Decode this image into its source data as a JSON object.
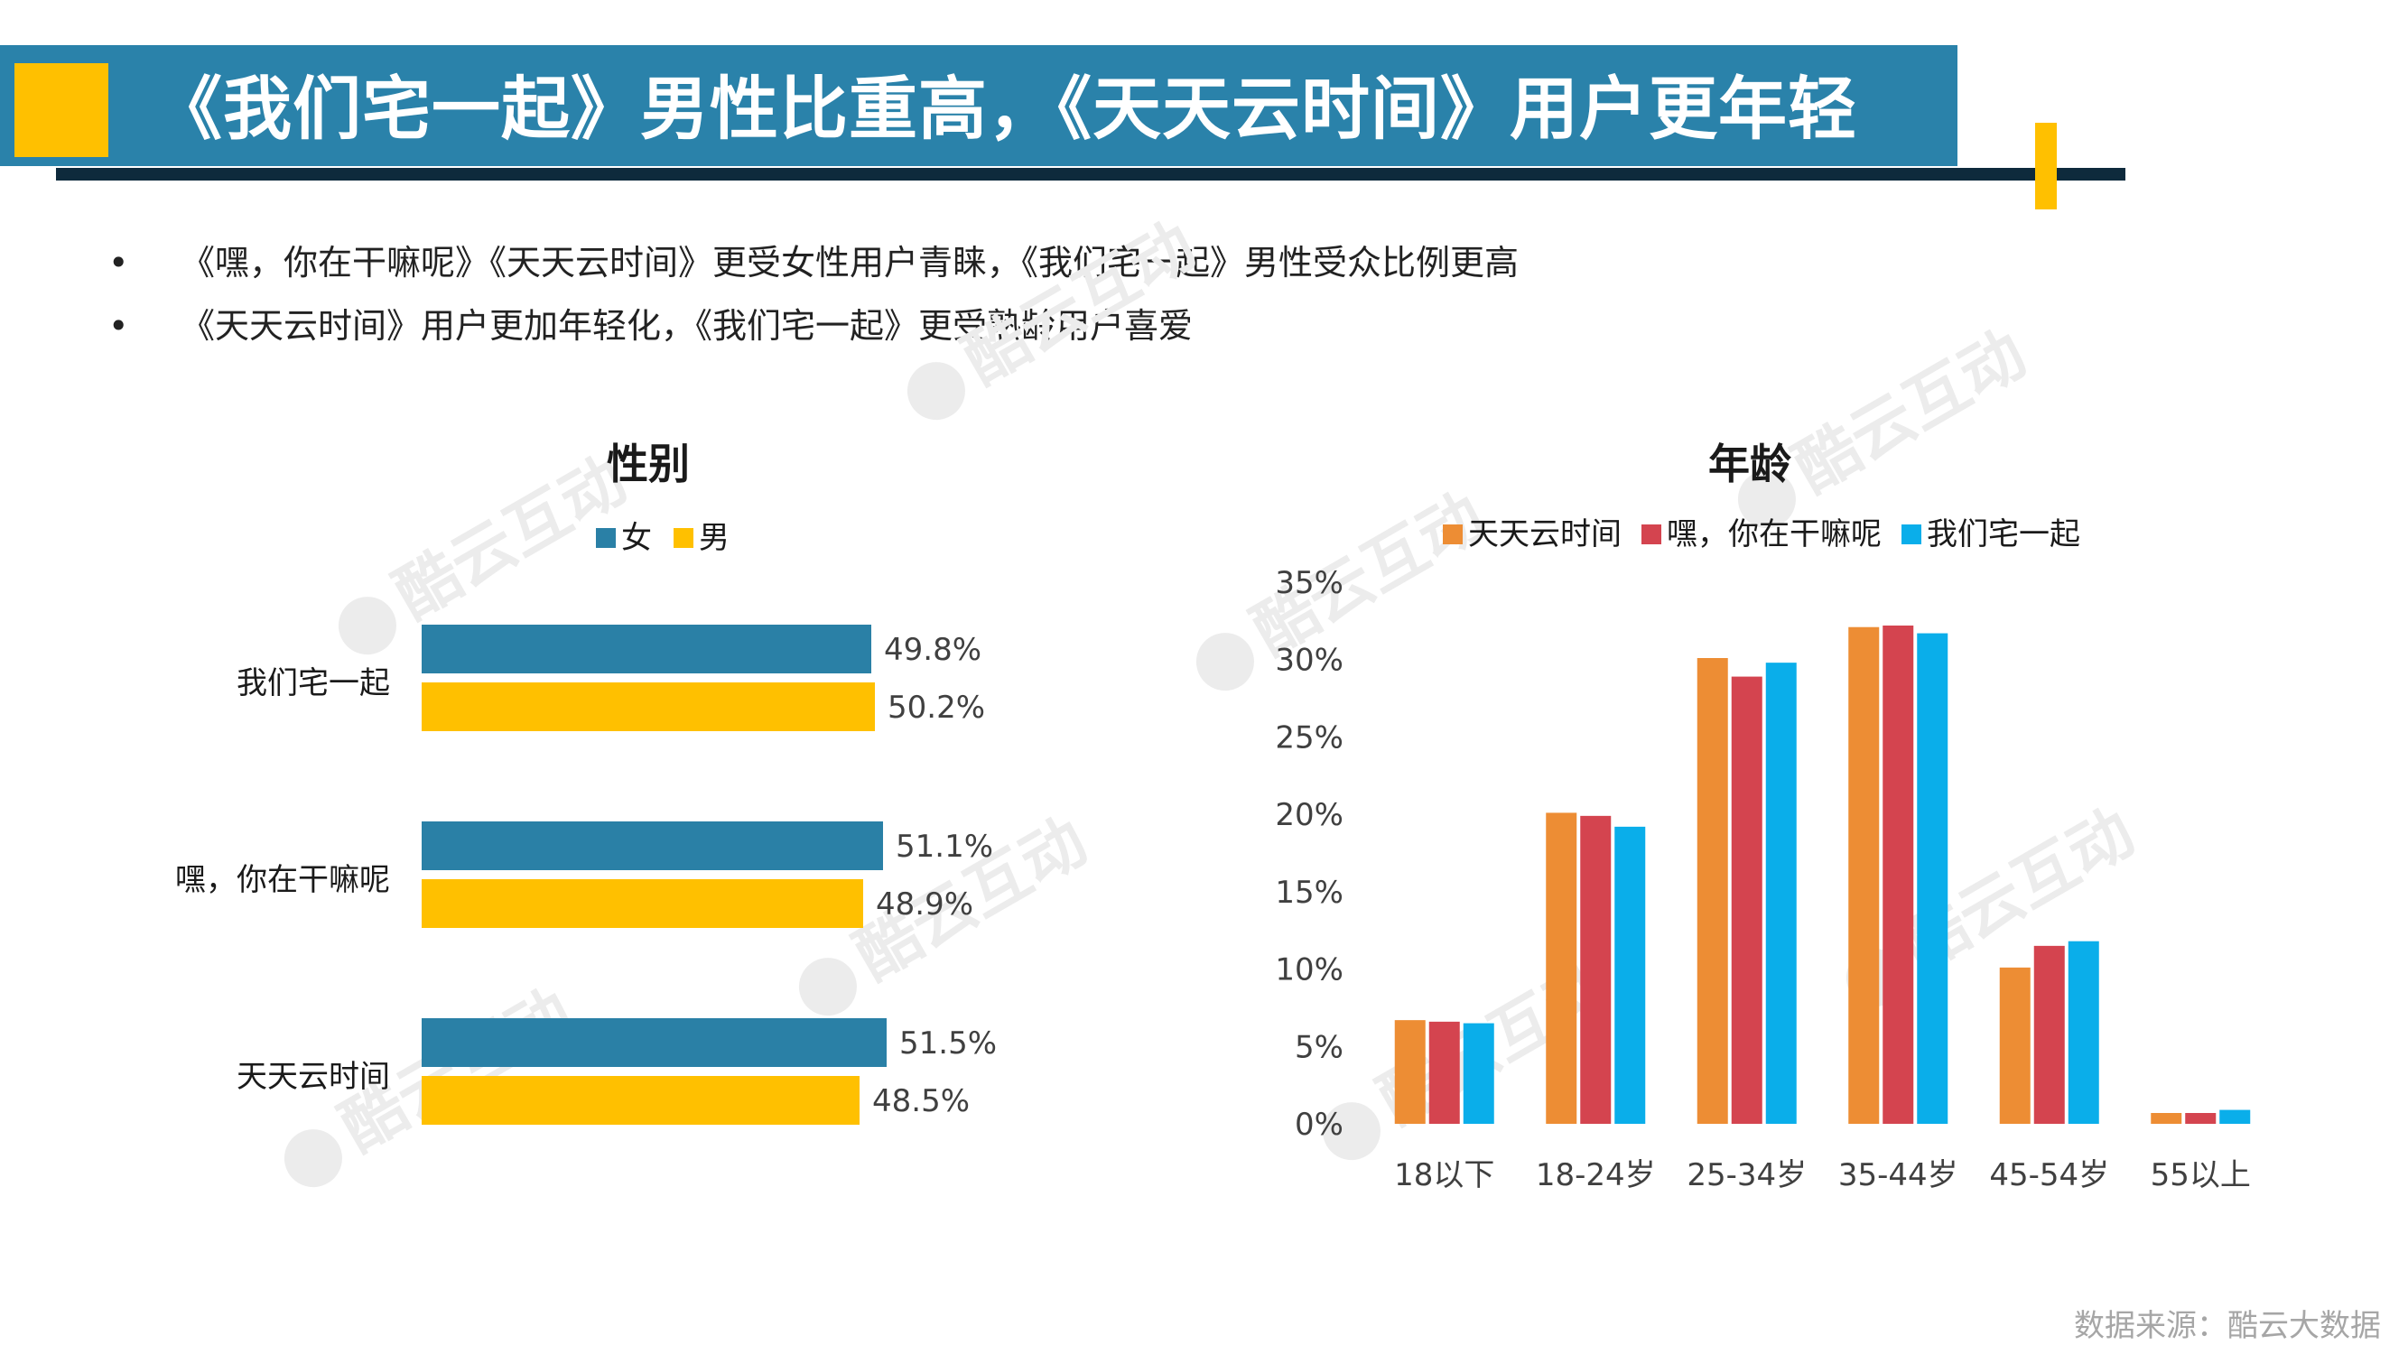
{
  "header": {
    "title": "《我们宅一起》男性比重高，《天天云时间》用户更年轻"
  },
  "bullets": [
    "《嘿，你在干嘛呢》《天天云时间》更受女性用户青睐，《我们宅一起》男性受众比例更高",
    "《天天云时间》用户更加年轻化，《我们宅一起》更受熟龄用户喜爱"
  ],
  "watermark": "酷云互动",
  "source": "数据来源：酷云大数据",
  "colors": {
    "title_bar": "#2a82aa",
    "accent_yellow": "#ffc000",
    "female": "#2a80a6",
    "male": "#ffc000",
    "orange": "#ed8d34",
    "red": "#d4444f",
    "cyan": "#0aaeea"
  },
  "chart_data": [
    {
      "type": "bar",
      "orientation": "horizontal",
      "title": "性别",
      "categories": [
        "我们宅一起",
        "嘿，你在干嘛呢",
        "天天云时间"
      ],
      "series": [
        {
          "name": "女",
          "color": "#2a80a6",
          "values": [
            49.8,
            51.1,
            51.5
          ],
          "labels": [
            "49.8%",
            "51.1%",
            "51.5%"
          ]
        },
        {
          "name": "男",
          "color": "#ffc000",
          "values": [
            50.2,
            48.9,
            48.5
          ],
          "labels": [
            "50.2%",
            "48.9%",
            "48.5%"
          ]
        }
      ],
      "xlim": [
        0,
        55
      ],
      "legend": "top"
    },
    {
      "type": "bar",
      "orientation": "vertical",
      "title": "年龄",
      "categories": [
        "18以下",
        "18-24岁",
        "25-34岁",
        "35-44岁",
        "45-54岁",
        "55以上"
      ],
      "series": [
        {
          "name": "天天云时间",
          "color": "#ed8d34",
          "values": [
            6.7,
            20.1,
            30.1,
            32.1,
            10.1,
            0.7
          ]
        },
        {
          "name": "嘿，你在干嘛呢",
          "color": "#d4444f",
          "values": [
            6.6,
            19.9,
            28.9,
            32.2,
            11.5,
            0.7
          ]
        },
        {
          "name": "我们宅一起",
          "color": "#0aaeea",
          "values": [
            6.5,
            19.2,
            29.8,
            31.7,
            11.8,
            0.9
          ]
        }
      ],
      "ylim": [
        0,
        35
      ],
      "yticks": [
        "0%",
        "5%",
        "10%",
        "15%",
        "20%",
        "25%",
        "30%",
        "35%"
      ],
      "legend": "top"
    }
  ]
}
